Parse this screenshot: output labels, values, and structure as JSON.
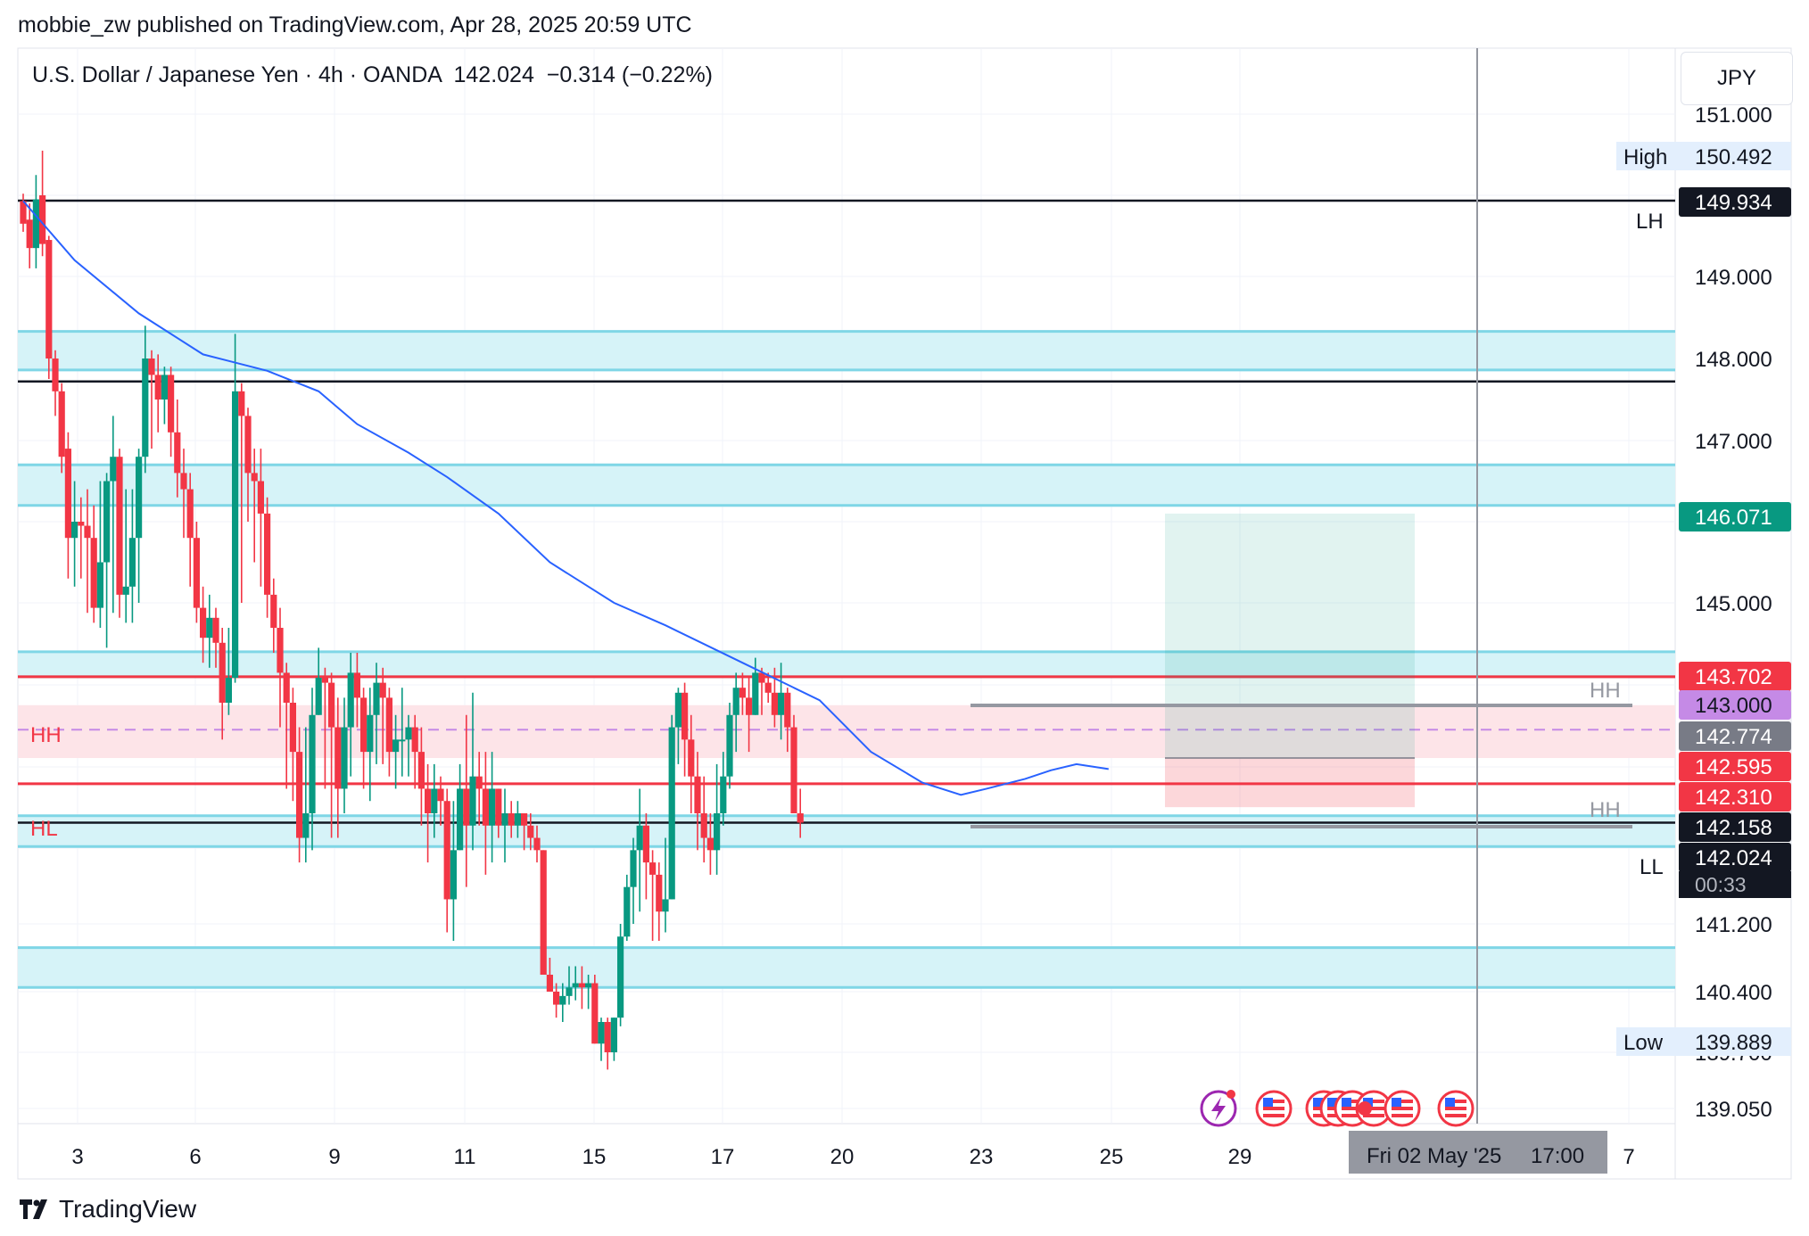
{
  "header": {
    "published": "mobbie_zw published on TradingView.com, Apr 28, 2025 20:59 UTC"
  },
  "legend": {
    "symbol": "U.S. Dollar / Japanese Yen · 4h · OANDA",
    "last": "142.024",
    "change": "−0.314 (−0.22%)"
  },
  "currency": "JPY",
  "footer": {
    "brand": "TradingView"
  },
  "colors": {
    "up": "#089981",
    "down": "#f23645",
    "ema": "#2962ff",
    "zone": "#d6f3f8",
    "zone_edge": "#7fd6e6",
    "red_level": "#f23645",
    "purple_dash": "#c58ae6",
    "pink_zone": "#fde4e8"
  },
  "chart_data": {
    "type": "candlestick",
    "title": "U.S. Dollar / Japanese Yen · 4h · OANDA",
    "x_ticks": [
      "3",
      "6",
      "9",
      "11",
      "15",
      "17",
      "20",
      "23",
      "25",
      "29",
      "7"
    ],
    "y_ticks": [
      "151.000",
      "149.000",
      "148.000",
      "147.000",
      "145.000",
      "141.200",
      "140.400",
      "139.700",
      "139.050"
    ],
    "price_labels": [
      {
        "label": "High",
        "value": "150.492",
        "price": 150.492,
        "style": "plain"
      },
      {
        "label": "",
        "value": "149.934",
        "price": 149.934,
        "style": "black"
      },
      {
        "label": "",
        "value": "146.071",
        "price": 146.071,
        "style": "green"
      },
      {
        "label": "",
        "value": "143.702",
        "price": 143.702,
        "style": "red"
      },
      {
        "label": "",
        "value": "143.000",
        "price": 143.0,
        "style": "purple"
      },
      {
        "label": "",
        "value": "142.774",
        "price": 142.774,
        "style": "gray"
      },
      {
        "label": "",
        "value": "142.595",
        "price": 142.595,
        "style": "red"
      },
      {
        "label": "",
        "value": "142.310",
        "price": 142.31,
        "style": "red"
      },
      {
        "label": "",
        "value": "142.158",
        "price": 142.158,
        "style": "black"
      },
      {
        "label": "",
        "value": "142.024",
        "price": 142.024,
        "style": "black"
      },
      {
        "label": "Low",
        "value": "139.889",
        "price": 139.889,
        "style": "plain"
      }
    ],
    "countdown": "00:33",
    "crosshair_date": "Fri 02 May '25",
    "crosshair_time": "17:00",
    "annotations": [
      "LH",
      "HH",
      "HL",
      "HH",
      "HH",
      "LL"
    ],
    "zones": [
      {
        "from": 147.86,
        "to": 148.33
      },
      {
        "from": 146.2,
        "to": 146.7
      },
      {
        "from": 143.52,
        "to": 144.02
      },
      {
        "from": 141.83,
        "to": 142.08
      },
      {
        "from": 140.45,
        "to": 140.92
      }
    ],
    "levels": [
      {
        "price": 149.934,
        "color": "black"
      },
      {
        "price": 147.72,
        "color": "black"
      },
      {
        "price": 143.52,
        "color": "red"
      },
      {
        "price": 142.34,
        "color": "red"
      },
      {
        "price": 142.024,
        "color": "black"
      }
    ],
    "candles": [
      [
        149.93,
        149.65,
        150.02,
        149.55
      ],
      [
        149.7,
        149.35,
        149.9,
        149.1
      ],
      [
        149.35,
        149.95,
        150.25,
        149.1
      ],
      [
        150.0,
        149.4,
        150.55,
        149.25
      ],
      [
        149.45,
        148.0,
        149.5,
        147.75
      ],
      [
        148.0,
        147.6,
        148.1,
        147.3
      ],
      [
        147.6,
        146.8,
        147.7,
        146.6
      ],
      [
        146.9,
        145.8,
        147.1,
        145.3
      ],
      [
        145.8,
        146.0,
        146.5,
        145.2
      ],
      [
        146.0,
        145.95,
        146.3,
        145.3
      ],
      [
        145.95,
        145.8,
        146.4,
        144.8
      ],
      [
        145.8,
        144.9,
        146.2,
        144.6
      ],
      [
        144.9,
        145.5,
        146.5,
        144.5
      ],
      [
        145.5,
        146.5,
        146.6,
        144.1
      ],
      [
        146.5,
        146.8,
        147.3,
        144.8
      ],
      [
        146.8,
        145.1,
        146.9,
        144.7
      ],
      [
        145.1,
        145.2,
        146.4,
        144.6
      ],
      [
        145.2,
        145.8,
        146.4,
        144.6
      ],
      [
        145.8,
        146.8,
        146.9,
        145.0
      ],
      [
        146.8,
        148.0,
        148.4,
        146.6
      ],
      [
        148.0,
        147.8,
        148.1,
        146.9
      ],
      [
        147.8,
        147.5,
        148.05,
        147.1
      ],
      [
        147.5,
        147.8,
        147.9,
        147.2
      ],
      [
        147.8,
        147.1,
        147.9,
        146.8
      ],
      [
        147.1,
        146.6,
        147.5,
        146.3
      ],
      [
        146.6,
        146.4,
        146.9,
        145.8
      ],
      [
        146.4,
        145.8,
        146.6,
        145.2
      ],
      [
        145.8,
        144.9,
        146.0,
        144.6
      ],
      [
        144.9,
        144.3,
        145.2,
        143.8
      ],
      [
        144.3,
        144.7,
        145.1,
        143.7
      ],
      [
        144.7,
        144.2,
        144.9,
        143.7
      ],
      [
        144.2,
        143.0,
        144.5,
        142.7
      ],
      [
        143.0,
        143.5,
        144.5,
        142.9
      ],
      [
        143.5,
        147.6,
        148.3,
        143.4
      ],
      [
        147.6,
        147.3,
        147.7,
        145.0
      ],
      [
        147.3,
        146.6,
        147.4,
        146.0
      ],
      [
        146.6,
        146.5,
        146.9,
        145.5
      ],
      [
        146.5,
        146.1,
        146.9,
        145.2
      ],
      [
        146.1,
        145.1,
        146.3,
        144.7
      ],
      [
        145.1,
        144.5,
        145.3,
        144.0
      ],
      [
        144.5,
        143.6,
        144.9,
        142.8
      ],
      [
        143.6,
        143.0,
        143.8,
        142.3
      ],
      [
        143.0,
        142.6,
        143.3,
        142.2
      ],
      [
        142.6,
        141.9,
        142.8,
        141.7
      ],
      [
        141.9,
        142.1,
        142.8,
        141.7
      ],
      [
        142.1,
        142.9,
        143.3,
        141.8
      ],
      [
        142.9,
        143.5,
        144.1,
        142.9
      ],
      [
        143.5,
        143.4,
        143.7,
        142.3
      ],
      [
        143.4,
        142.8,
        143.6,
        141.9
      ],
      [
        142.8,
        142.3,
        143.1,
        141.9
      ],
      [
        142.3,
        142.8,
        143.1,
        142.1
      ],
      [
        142.8,
        143.6,
        144.0,
        142.4
      ],
      [
        143.6,
        143.1,
        144.0,
        142.8
      ],
      [
        143.1,
        142.6,
        143.3,
        142.3
      ],
      [
        142.6,
        142.9,
        143.3,
        142.2
      ],
      [
        142.9,
        143.4,
        143.8,
        142.5
      ],
      [
        143.4,
        143.1,
        143.7,
        142.5
      ],
      [
        143.1,
        142.6,
        143.3,
        142.4
      ],
      [
        142.6,
        142.7,
        142.9,
        142.3
      ],
      [
        142.7,
        142.7,
        143.3,
        142.4
      ],
      [
        142.7,
        142.8,
        142.9,
        142.4
      ],
      [
        142.8,
        142.6,
        142.9,
        142.3
      ],
      [
        142.6,
        142.3,
        142.8,
        142.0
      ],
      [
        142.3,
        142.1,
        142.5,
        141.7
      ],
      [
        142.1,
        142.3,
        142.5,
        141.9
      ],
      [
        142.3,
        142.2,
        142.4,
        142.0
      ],
      [
        142.2,
        141.4,
        142.3,
        141.1
      ],
      [
        141.4,
        141.8,
        142.2,
        141.0
      ],
      [
        141.8,
        142.3,
        142.5,
        141.8
      ],
      [
        142.3,
        142.0,
        142.9,
        141.5
      ],
      [
        142.0,
        142.4,
        143.2,
        141.8
      ],
      [
        142.4,
        142.3,
        142.6,
        142.0
      ],
      [
        142.3,
        142.0,
        142.6,
        141.6
      ],
      [
        142.0,
        142.3,
        142.6,
        141.7
      ],
      [
        142.3,
        142.0,
        142.3,
        141.9
      ],
      [
        142.0,
        142.1,
        142.3,
        141.7
      ],
      [
        142.1,
        142.0,
        142.2,
        141.9
      ],
      [
        142.0,
        142.1,
        142.2,
        141.9
      ],
      [
        142.1,
        142.0,
        142.1,
        141.8
      ],
      [
        142.0,
        141.9,
        142.1,
        141.8
      ],
      [
        141.9,
        141.8,
        142.0,
        141.7
      ],
      [
        141.8,
        140.6,
        141.8,
        140.6
      ],
      [
        140.6,
        140.4,
        140.8,
        140.4
      ],
      [
        140.4,
        140.25,
        140.5,
        140.1
      ],
      [
        140.25,
        140.35,
        140.5,
        140.05
      ],
      [
        140.35,
        140.45,
        140.7,
        140.25
      ],
      [
        140.45,
        140.5,
        140.7,
        140.3
      ],
      [
        140.5,
        140.45,
        140.7,
        140.2
      ],
      [
        140.45,
        140.5,
        140.6,
        140.2
      ],
      [
        140.5,
        139.8,
        140.6,
        139.8
      ],
      [
        139.8,
        140.05,
        140.1,
        139.6
      ],
      [
        140.05,
        139.7,
        140.1,
        139.5
      ],
      [
        139.7,
        140.1,
        140.1,
        139.6
      ],
      [
        140.1,
        141.05,
        141.2,
        140.0
      ],
      [
        141.05,
        141.5,
        141.6,
        141.0
      ],
      [
        141.5,
        141.8,
        141.9,
        141.2
      ],
      [
        141.8,
        142.0,
        142.3,
        141.3
      ],
      [
        142.0,
        141.7,
        142.1,
        141.4
      ],
      [
        141.7,
        141.6,
        141.8,
        141.0
      ],
      [
        141.6,
        141.3,
        141.7,
        141.0
      ],
      [
        141.3,
        141.4,
        141.9,
        141.1
      ],
      [
        141.4,
        142.8,
        142.9,
        141.4
      ],
      [
        142.8,
        143.2,
        143.3,
        142.5
      ],
      [
        143.2,
        142.7,
        143.4,
        142.4
      ],
      [
        142.7,
        142.4,
        142.9,
        142.1
      ],
      [
        142.4,
        142.1,
        142.6,
        141.8
      ],
      [
        142.1,
        141.9,
        142.4,
        141.7
      ],
      [
        141.9,
        141.8,
        142.1,
        141.6
      ],
      [
        141.8,
        142.1,
        142.5,
        141.6
      ],
      [
        142.1,
        142.4,
        142.6,
        142.0
      ],
      [
        142.4,
        142.9,
        143.0,
        142.3
      ],
      [
        142.9,
        143.3,
        143.6,
        142.6
      ],
      [
        143.3,
        143.1,
        143.6,
        142.9
      ],
      [
        143.1,
        142.9,
        143.5,
        142.6
      ],
      [
        142.9,
        143.6,
        143.9,
        142.9
      ],
      [
        143.6,
        143.4,
        143.7,
        142.9
      ],
      [
        143.4,
        143.2,
        143.6,
        143.0
      ],
      [
        143.2,
        142.9,
        143.7,
        142.8
      ],
      [
        142.9,
        143.2,
        143.8,
        142.7
      ],
      [
        143.2,
        142.8,
        143.3,
        142.6
      ],
      [
        142.8,
        142.1,
        142.9,
        142.1
      ],
      [
        142.1,
        142.024,
        142.3,
        141.9
      ]
    ],
    "ema": [
      [
        0,
        149.93
      ],
      [
        8,
        149.2
      ],
      [
        18,
        148.55
      ],
      [
        28,
        148.05
      ],
      [
        38,
        147.85
      ],
      [
        46,
        147.6
      ],
      [
        52,
        147.2
      ],
      [
        60,
        146.85
      ],
      [
        66,
        146.55
      ],
      [
        74,
        146.1
      ],
      [
        82,
        145.5
      ],
      [
        92,
        145.0
      ],
      [
        100,
        144.55
      ],
      [
        108,
        144.05
      ],
      [
        116,
        143.55
      ],
      [
        124,
        143.05
      ],
      [
        132,
        142.6
      ],
      [
        140,
        142.35
      ],
      [
        146,
        142.25
      ],
      [
        150,
        142.3
      ],
      [
        156,
        142.38
      ],
      [
        160,
        142.45
      ],
      [
        164,
        142.5
      ],
      [
        169,
        142.46
      ]
    ],
    "rr_box": {
      "x0": 162,
      "x1": 197,
      "entry": 142.55,
      "stop": 142.15,
      "target": 146.1
    },
    "markers": [
      {
        "line": 142.95,
        "x0": 135,
        "x1": 228,
        "label": "HH"
      },
      {
        "line": 142.15,
        "x0": 135,
        "x1": 228,
        "label": "HH"
      }
    ]
  }
}
